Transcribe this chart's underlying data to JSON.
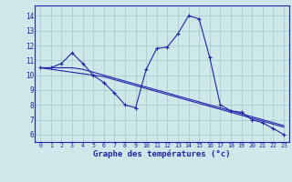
{
  "title": "Graphe des températures (°c)",
  "background_color": "#cce8e8",
  "grid_color": "#aacccc",
  "line_color": "#2222aa",
  "x_labels": [
    "0",
    "1",
    "2",
    "3",
    "4",
    "5",
    "6",
    "7",
    "8",
    "9",
    "10",
    "11",
    "12",
    "13",
    "14",
    "15",
    "16",
    "17",
    "18",
    "19",
    "20",
    "21",
    "22",
    "23"
  ],
  "ylim": [
    5.5,
    14.7
  ],
  "yticks": [
    6,
    7,
    8,
    9,
    10,
    11,
    12,
    13,
    14
  ],
  "main_series": [
    10.5,
    10.5,
    10.8,
    11.5,
    10.8,
    10.0,
    9.5,
    8.8,
    8.0,
    7.8,
    10.4,
    11.8,
    11.9,
    12.8,
    14.0,
    13.8,
    11.2,
    8.0,
    7.6,
    7.5,
    7.0,
    6.8,
    6.4,
    6.0
  ],
  "trend1": [
    10.5,
    10.5,
    10.5,
    10.5,
    10.4,
    10.2,
    10.0,
    9.8,
    9.6,
    9.4,
    9.2,
    9.0,
    8.8,
    8.6,
    8.4,
    8.2,
    8.0,
    7.8,
    7.6,
    7.4,
    7.2,
    7.0,
    6.8,
    6.6
  ],
  "trend2": [
    10.5,
    10.4,
    10.3,
    10.2,
    10.1,
    10.0,
    9.9,
    9.7,
    9.5,
    9.3,
    9.1,
    8.9,
    8.7,
    8.5,
    8.3,
    8.1,
    7.9,
    7.7,
    7.5,
    7.3,
    7.1,
    6.9,
    6.7,
    6.5
  ],
  "xlabel_fontsize": 6.0,
  "ylabel_fontsize": 6.0,
  "title_fontsize": 6.5
}
